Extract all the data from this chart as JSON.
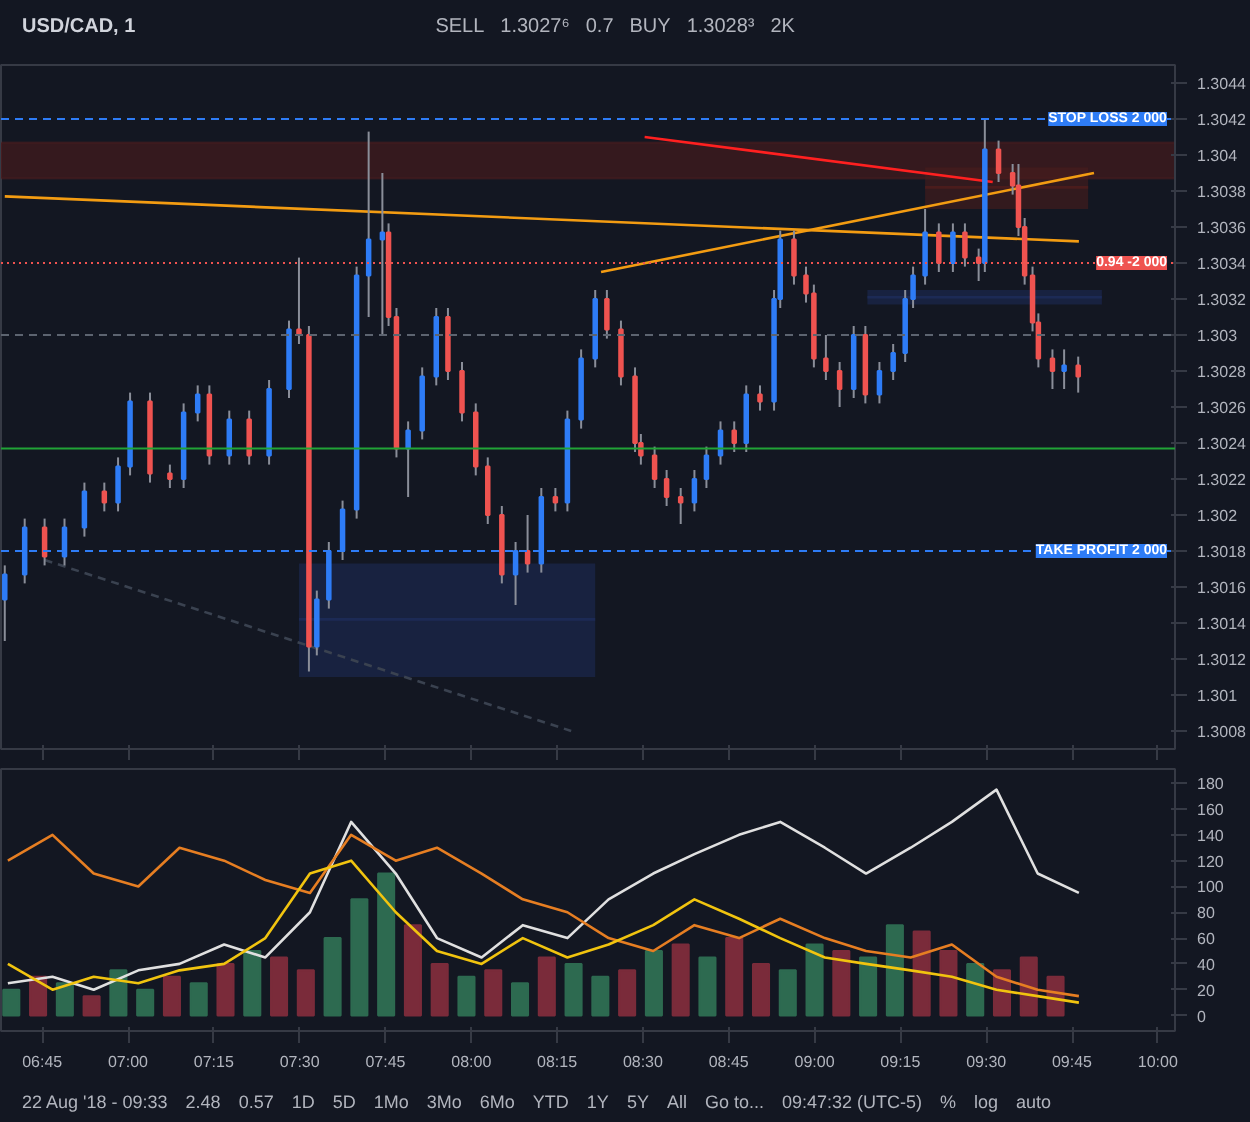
{
  "chart_data": [
    {
      "type": "candlestick",
      "title": "USD/CAD, 1",
      "annotations": [
        "SELL",
        "1.3027⁶",
        "0.7",
        "BUY",
        "1.3028³",
        "2K",
        {
          "text": "0.94 -2 000",
          "x": 10.05,
          "y": 1.3034
        }
      ],
      "x": [
        6.641,
        6.699,
        6.757,
        6.815,
        6.873,
        6.931,
        6.971,
        7.006,
        7.064,
        7.122,
        7.162,
        7.203,
        7.237,
        7.295,
        7.353,
        7.411,
        7.469,
        7.498,
        7.527,
        7.55,
        7.585,
        7.625,
        7.666,
        7.701,
        7.741,
        7.759,
        7.782,
        7.816,
        7.857,
        7.898,
        7.932,
        7.973,
        8.013,
        8.048,
        8.089,
        8.129,
        8.164,
        8.204,
        8.245,
        8.28,
        8.32,
        8.361,
        8.395,
        8.436,
        8.477,
        8.494,
        8.534,
        8.569,
        8.61,
        8.65,
        8.685,
        8.726,
        8.766,
        8.801,
        8.841,
        8.882,
        8.9,
        8.94,
        8.975,
        8.998,
        9.033,
        9.073,
        9.114,
        9.148,
        9.189,
        9.229,
        9.264,
        9.287,
        9.322,
        9.362,
        9.403,
        9.438,
        9.478,
        9.496,
        9.536,
        9.577,
        9.594,
        9.612,
        9.635,
        9.652,
        9.693,
        9.727,
        9.768
      ],
      "ohlc": [
        [
          1.30153,
          1.30172,
          1.3013,
          1.30167
        ],
        [
          1.30167,
          1.30198,
          1.30162,
          1.30193
        ],
        [
          1.30193,
          1.30198,
          1.30172,
          1.30177
        ],
        [
          1.30177,
          1.30198,
          1.30172,
          1.30193
        ],
        [
          1.30193,
          1.30218,
          1.30188,
          1.30213
        ],
        [
          1.30213,
          1.30218,
          1.30202,
          1.30207
        ],
        [
          1.30207,
          1.30232,
          1.30202,
          1.30227
        ],
        [
          1.30227,
          1.30268,
          1.30222,
          1.30263
        ],
        [
          1.30263,
          1.30268,
          1.30218,
          1.30223
        ],
        [
          1.30223,
          1.30228,
          1.30215,
          1.3022
        ],
        [
          1.3022,
          1.30262,
          1.30215,
          1.30257
        ],
        [
          1.30257,
          1.30272,
          1.30252,
          1.30267
        ],
        [
          1.30267,
          1.30272,
          1.30228,
          1.30233
        ],
        [
          1.30233,
          1.30258,
          1.30228,
          1.30253
        ],
        [
          1.30253,
          1.30258,
          1.30228,
          1.30233
        ],
        [
          1.30233,
          1.30275,
          1.30228,
          1.3027
        ],
        [
          1.3027,
          1.30308,
          1.30265,
          1.30303
        ],
        [
          1.30303,
          1.30343,
          1.30295,
          1.303
        ],
        [
          1.303,
          1.30305,
          1.30113,
          1.30127
        ],
        [
          1.30127,
          1.30158,
          1.30122,
          1.30153
        ],
        [
          1.30153,
          1.30185,
          1.30148,
          1.3018
        ],
        [
          1.3018,
          1.30208,
          1.30175,
          1.30203
        ],
        [
          1.30203,
          1.30338,
          1.30198,
          1.30333
        ],
        [
          1.30333,
          1.30413,
          1.3031,
          1.30353
        ],
        [
          1.30353,
          1.3039,
          1.303,
          1.30357
        ],
        [
          1.30357,
          1.30362,
          1.30305,
          1.3031
        ],
        [
          1.3031,
          1.30315,
          1.30232,
          1.30237
        ],
        [
          1.30237,
          1.30252,
          1.3021,
          1.30247
        ],
        [
          1.30247,
          1.30282,
          1.30242,
          1.30277
        ],
        [
          1.30277,
          1.30315,
          1.30272,
          1.3031
        ],
        [
          1.3031,
          1.30315,
          1.30275,
          1.3028
        ],
        [
          1.3028,
          1.30285,
          1.30252,
          1.30257
        ],
        [
          1.30257,
          1.30262,
          1.30222,
          1.30227
        ],
        [
          1.30227,
          1.30232,
          1.30195,
          1.302
        ],
        [
          1.302,
          1.30205,
          1.30162,
          1.30167
        ],
        [
          1.30167,
          1.30185,
          1.3015,
          1.3018
        ],
        [
          1.3018,
          1.302,
          1.30168,
          1.30173
        ],
        [
          1.30173,
          1.30215,
          1.30168,
          1.3021
        ],
        [
          1.3021,
          1.30215,
          1.30202,
          1.30207
        ],
        [
          1.30207,
          1.30258,
          1.30202,
          1.30253
        ],
        [
          1.30253,
          1.30292,
          1.30248,
          1.30287
        ],
        [
          1.30287,
          1.30325,
          1.30282,
          1.3032
        ],
        [
          1.3032,
          1.30325,
          1.30298,
          1.30303
        ],
        [
          1.30303,
          1.30308,
          1.30272,
          1.30277
        ],
        [
          1.30277,
          1.30282,
          1.30235,
          1.3024
        ],
        [
          1.3024,
          1.30245,
          1.30228,
          1.30233
        ],
        [
          1.30233,
          1.30238,
          1.30215,
          1.3022
        ],
        [
          1.3022,
          1.30225,
          1.30205,
          1.3021
        ],
        [
          1.3021,
          1.30215,
          1.30195,
          1.30207
        ],
        [
          1.30207,
          1.30225,
          1.30202,
          1.3022
        ],
        [
          1.3022,
          1.30238,
          1.30215,
          1.30233
        ],
        [
          1.30233,
          1.30252,
          1.30228,
          1.30247
        ],
        [
          1.30247,
          1.30252,
          1.30235,
          1.3024
        ],
        [
          1.3024,
          1.30272,
          1.30235,
          1.30267
        ],
        [
          1.30267,
          1.30272,
          1.30258,
          1.30263
        ],
        [
          1.30263,
          1.30325,
          1.30258,
          1.3032
        ],
        [
          1.3032,
          1.30358,
          1.30315,
          1.30353
        ],
        [
          1.30353,
          1.30358,
          1.30328,
          1.30333
        ],
        [
          1.30333,
          1.30338,
          1.30318,
          1.30323
        ],
        [
          1.30323,
          1.30328,
          1.30282,
          1.30287
        ],
        [
          1.30287,
          1.303,
          1.30275,
          1.3028
        ],
        [
          1.3028,
          1.30285,
          1.3026,
          1.3027
        ],
        [
          1.3027,
          1.30305,
          1.30265,
          1.303
        ],
        [
          1.303,
          1.30305,
          1.30262,
          1.30267
        ],
        [
          1.30267,
          1.30285,
          1.30262,
          1.3028
        ],
        [
          1.3028,
          1.30295,
          1.30275,
          1.3029
        ],
        [
          1.3029,
          1.30325,
          1.30285,
          1.3032
        ],
        [
          1.3032,
          1.30338,
          1.30315,
          1.30333
        ],
        [
          1.30333,
          1.3037,
          1.30328,
          1.30357
        ],
        [
          1.30357,
          1.30362,
          1.30335,
          1.3034
        ],
        [
          1.3034,
          1.30362,
          1.30335,
          1.30357
        ],
        [
          1.30357,
          1.30362,
          1.30338,
          1.30343
        ],
        [
          1.30343,
          1.30348,
          1.3033,
          1.3034
        ],
        [
          1.3034,
          1.3042,
          1.30335,
          1.30403
        ],
        [
          1.30403,
          1.30408,
          1.30385,
          1.3039
        ],
        [
          1.3039,
          1.30395,
          1.30378,
          1.30383
        ],
        [
          1.30383,
          1.30395,
          1.30355,
          1.3036
        ],
        [
          1.3036,
          1.30365,
          1.30328,
          1.30333
        ],
        [
          1.30333,
          1.30338,
          1.30302,
          1.30307
        ],
        [
          1.30307,
          1.30312,
          1.30282,
          1.30287
        ],
        [
          1.30287,
          1.30292,
          1.3027,
          1.3028
        ],
        [
          1.3028,
          1.30292,
          1.3027,
          1.30283
        ],
        [
          1.30283,
          1.30288,
          1.30268,
          1.30277
        ]
      ],
      "colors": [
        "#2e7cf6",
        "#2e7cf6",
        "#ef5350",
        "#2e7cf6",
        "#2e7cf6",
        "#ef5350",
        "#2e7cf6",
        "#2e7cf6",
        "#ef5350",
        "#ef5350",
        "#2e7cf6",
        "#2e7cf6",
        "#ef5350",
        "#2e7cf6",
        "#ef5350",
        "#2e7cf6",
        "#2e7cf6",
        "#ef5350",
        "#ef5350",
        "#2e7cf6",
        "#2e7cf6",
        "#2e7cf6",
        "#2e7cf6",
        "#2e7cf6",
        "#2e7cf6",
        "#ef5350",
        "#ef5350",
        "#2e7cf6",
        "#2e7cf6",
        "#2e7cf6",
        "#ef5350",
        "#ef5350",
        "#ef5350",
        "#ef5350",
        "#ef5350",
        "#2e7cf6",
        "#ef5350",
        "#2e7cf6",
        "#ef5350",
        "#2e7cf6",
        "#2e7cf6",
        "#2e7cf6",
        "#ef5350",
        "#ef5350",
        "#ef5350",
        "#ef5350",
        "#ef5350",
        "#ef5350",
        "#ef5350",
        "#2e7cf6",
        "#2e7cf6",
        "#2e7cf6",
        "#ef5350",
        "#2e7cf6",
        "#ef5350",
        "#2e7cf6",
        "#2e7cf6",
        "#ef5350",
        "#ef5350",
        "#ef5350",
        "#ef5350",
        "#ef5350",
        "#2e7cf6",
        "#ef5350",
        "#2e7cf6",
        "#2e7cf6",
        "#2e7cf6",
        "#2e7cf6",
        "#2e7cf6",
        "#ef5350",
        "#2e7cf6",
        "#ef5350",
        "#ef5350",
        "#2e7cf6",
        "#ef5350",
        "#ef5350",
        "#ef5350",
        "#ef5350",
        "#ef5350",
        "#ef5350",
        "#ef5350",
        "#2e7cf6",
        "#ef5350"
      ],
      "series": [
        {
          "type": "line",
          "color": "#f39c12",
          "x": [
            6.641,
            9.77
          ],
          "values": [
            1.30377,
            1.30352
          ]
        },
        {
          "type": "line",
          "color": "#f39c12",
          "x": [
            8.378,
            9.814
          ],
          "values": [
            1.30335,
            1.3039
          ]
        },
        {
          "type": "line",
          "color": "#ff2020",
          "x": [
            8.505,
            9.519
          ],
          "values": [
            1.3041,
            1.30385
          ]
        },
        {
          "type": "line",
          "color": "#3a4250",
          "line_style": "dashed",
          "x": [
            6.757,
            8.291
          ],
          "values": [
            1.30175,
            1.3008
          ]
        },
        {
          "type": "line",
          "color": "#1c2a55",
          "x": [
            7.498,
            8.361
          ],
          "lower": [
            1.3011,
            1.3011
          ],
          "upper": [
            1.30173,
            1.30173
          ],
          "values": [
            1.30142,
            1.30142
          ]
        },
        {
          "type": "line",
          "color": "#1c2a55",
          "x": [
            9.154,
            9.837
          ],
          "lower": [
            1.30317,
            1.30317
          ],
          "upper": [
            1.30325,
            1.30325
          ],
          "values": [
            1.30321,
            1.30321
          ]
        },
        {
          "type": "line",
          "color": "#4a1c1c",
          "x": [
            9.322,
            9.797
          ],
          "lower": [
            1.3037,
            1.3037
          ],
          "upper": [
            1.30393,
            1.30393
          ],
          "values": [
            1.30382,
            1.30382
          ]
        }
      ],
      "bands": [
        {
          "axis": "y",
          "from": 1.30387,
          "to": 1.30407,
          "color": "#3a1a1e"
        }
      ],
      "ref_lines": [
        {
          "axis": "y",
          "value": 1.3042,
          "label": "STOP LOSS 2 000",
          "color": "#2e7cf6",
          "line_style": "dashed"
        },
        {
          "axis": "y",
          "value": 1.3034,
          "label": null,
          "color": "#ef5350",
          "line_style": "dotted"
        },
        {
          "axis": "y",
          "value": 1.303,
          "label": null,
          "color": "#5d6470",
          "line_style": "dashed"
        },
        {
          "axis": "y",
          "value": 1.30237,
          "label": null,
          "color": "#21a336",
          "line_style": "solid"
        },
        {
          "axis": "y",
          "value": 1.3018,
          "label": "TAKE PROFIT 2 000",
          "color": "#2e7cf6",
          "line_style": "dashed"
        }
      ],
      "xlim": [
        6.63,
        10.05
      ],
      "ylim": [
        1.3007,
        1.3045
      ],
      "xticks": [
        6.75,
        7,
        7.25,
        7.5,
        7.75,
        8,
        8.25,
        8.5,
        8.75,
        9,
        9.25,
        9.5,
        9.75,
        10
      ],
      "yticks": [
        1.3008,
        1.301,
        1.3012,
        1.3014,
        1.3016,
        1.3018,
        1.302,
        1.3022,
        1.3024,
        1.3026,
        1.3028,
        1.303,
        1.3032,
        1.3034,
        1.3036,
        1.3038,
        1.304,
        1.3042,
        1.3044
      ],
      "tick_labels": "y",
      "grid": false
    },
    {
      "type": "line",
      "annotations": [
        "22 Aug '18 - 09:33",
        "2.48",
        "0.57",
        "1D",
        "5D",
        "1Mo",
        "3Mo",
        "6Mo",
        "YTD",
        "1Y",
        "5Y",
        "All",
        "Go to...",
        "09:47:32 (UTC-5)",
        "%",
        "log",
        "auto"
      ],
      "x": [
        6.65,
        6.78,
        6.9,
        7.03,
        7.15,
        7.28,
        7.4,
        7.53,
        7.65,
        7.78,
        7.9,
        8.03,
        8.15,
        8.28,
        8.4,
        8.53,
        8.65,
        8.78,
        8.9,
        9.03,
        9.15,
        9.28,
        9.4,
        9.53,
        9.65,
        9.77
      ],
      "series": [
        {
          "type": "bar",
          "x": [
            6.66,
            6.738,
            6.816,
            6.894,
            6.972,
            7.05,
            7.128,
            7.206,
            7.284,
            7.362,
            7.44,
            7.518,
            7.596,
            7.674,
            7.752,
            7.83,
            7.908,
            7.986,
            8.064,
            8.142,
            8.22,
            8.298,
            8.376,
            8.454,
            8.532,
            8.61,
            8.688,
            8.766,
            8.844,
            8.922,
            9.0,
            9.078,
            9.156,
            9.234,
            9.312,
            9.39,
            9.468,
            9.546,
            9.624,
            9.702
          ],
          "values": [
            20,
            30,
            25,
            15,
            35,
            20,
            30,
            25,
            40,
            50,
            45,
            35,
            60,
            90,
            110,
            70,
            40,
            30,
            35,
            25,
            45,
            40,
            30,
            35,
            50,
            55,
            45,
            60,
            40,
            35,
            55,
            50,
            45,
            70,
            65,
            50,
            40,
            35,
            45,
            30
          ],
          "colors": [
            "#2d6a50",
            "#7a2b3a",
            "#2d6a50",
            "#7a2b3a",
            "#2d6a50",
            "#2d6a50",
            "#7a2b3a",
            "#2d6a50",
            "#7a2b3a",
            "#2d6a50",
            "#7a2b3a",
            "#7a2b3a",
            "#2d6a50",
            "#2d6a50",
            "#2d6a50",
            "#7a2b3a",
            "#7a2b3a",
            "#2d6a50",
            "#7a2b3a",
            "#2d6a50",
            "#7a2b3a",
            "#2d6a50",
            "#2d6a50",
            "#7a2b3a",
            "#2d6a50",
            "#7a2b3a",
            "#2d6a50",
            "#7a2b3a",
            "#7a2b3a",
            "#2d6a50",
            "#2d6a50",
            "#7a2b3a",
            "#2d6a50",
            "#2d6a50",
            "#7a2b3a",
            "#7a2b3a",
            "#2d6a50",
            "#7a2b3a",
            "#7a2b3a",
            "#7a2b3a"
          ]
        },
        {
          "color": "#e0e0e0",
          "values": [
            25,
            30,
            20,
            35,
            40,
            55,
            45,
            80,
            150,
            110,
            60,
            45,
            70,
            60,
            90,
            110,
            125,
            140,
            150,
            130,
            110,
            130,
            150,
            175,
            110,
            95
          ]
        },
        {
          "color": "#e67e22",
          "values": [
            120,
            140,
            110,
            100,
            130,
            120,
            105,
            95,
            140,
            120,
            130,
            110,
            90,
            80,
            60,
            50,
            70,
            60,
            75,
            60,
            50,
            45,
            55,
            30,
            20,
            15
          ]
        },
        {
          "color": "#f1c40f",
          "values": [
            40,
            20,
            30,
            25,
            35,
            40,
            60,
            110,
            120,
            80,
            50,
            40,
            60,
            45,
            55,
            70,
            90,
            75,
            60,
            45,
            40,
            35,
            30,
            20,
            15,
            10
          ]
        }
      ],
      "xlim": [
        6.63,
        10.05
      ],
      "ylim": [
        -12,
        191
      ],
      "xticks": [
        {
          "value": 6.75,
          "label": "06:45"
        },
        {
          "value": 7,
          "label": "07:00"
        },
        {
          "value": 7.25,
          "label": "07:15"
        },
        {
          "value": 7.5,
          "label": "07:30"
        },
        {
          "value": 7.75,
          "label": "07:45"
        },
        {
          "value": 8,
          "label": "08:00"
        },
        {
          "value": 8.25,
          "label": "08:15"
        },
        {
          "value": 8.5,
          "label": "08:30"
        },
        {
          "value": 8.75,
          "label": "08:45"
        },
        {
          "value": 9,
          "label": "09:00"
        },
        {
          "value": 9.25,
          "label": "09:15"
        },
        {
          "value": 9.5,
          "label": "09:30"
        },
        {
          "value": 9.75,
          "label": "09:45"
        },
        {
          "value": 10,
          "label": "10:00"
        }
      ],
      "yticks": [
        0,
        20,
        40,
        60,
        80,
        100,
        120,
        140,
        160,
        180
      ],
      "grid": false
    }
  ]
}
